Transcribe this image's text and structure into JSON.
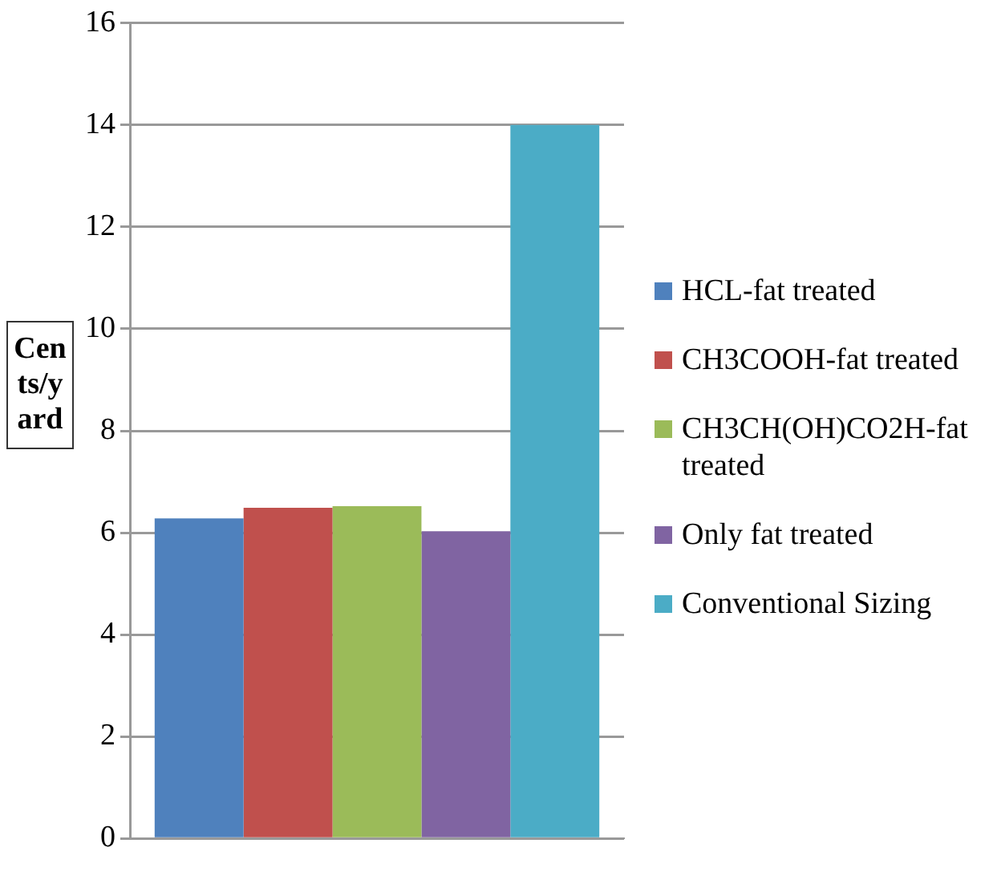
{
  "chart_data": {
    "type": "bar",
    "ylabel": "Cents/yard",
    "categories": [
      null
    ],
    "series": [
      {
        "name": "HCL-fat treated",
        "color": "#4f81bd",
        "values": [
          6.28
        ]
      },
      {
        "name": "CH3COOH-fat treated",
        "color": "#c0504d",
        "values": [
          6.49
        ]
      },
      {
        "name": "CH3CH(OH)CO2H-fat treated",
        "color": "#9bbb59",
        "values": [
          6.52
        ]
      },
      {
        "name": "Only fat treated",
        "color": "#8064a2",
        "values": [
          6.03
        ]
      },
      {
        "name": "Conventional Sizing",
        "color": "#4bacc6",
        "values": [
          14
        ]
      }
    ],
    "ylim": [
      0,
      16
    ],
    "yticks": [
      0,
      2,
      4,
      6,
      8,
      10,
      12,
      14,
      16
    ],
    "grid": "y",
    "legend": "right"
  }
}
